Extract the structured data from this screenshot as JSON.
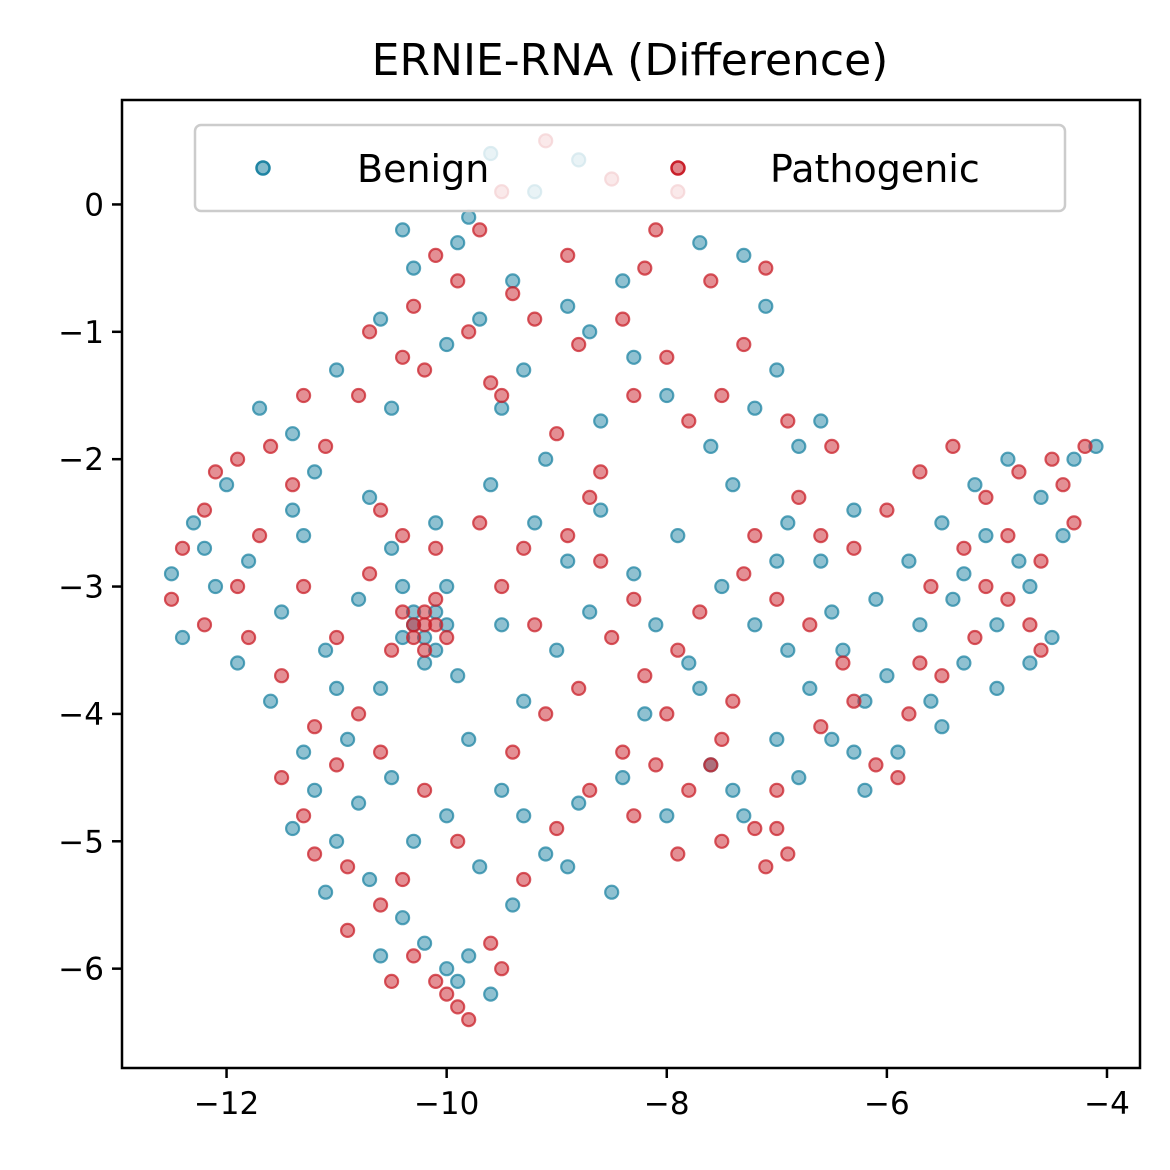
{
  "chart_data": {
    "type": "scatter",
    "title": "ERNIE-RNA (Difference)",
    "xlabel": "",
    "ylabel": "",
    "xlim": [
      -12.95,
      -3.7
    ],
    "ylim": [
      -6.78,
      0.82
    ],
    "xticks": [
      -12,
      -10,
      -8,
      -6,
      -4
    ],
    "yticks": [
      0,
      -1,
      -2,
      -3,
      -4,
      -5,
      -6
    ],
    "xtick_labels": [
      "−12",
      "−10",
      "−8",
      "−6",
      "−4"
    ],
    "ytick_labels": [
      "0",
      "−1",
      "−2",
      "−3",
      "−4",
      "−5",
      "−6"
    ],
    "grid": false,
    "legend": {
      "position": "upper-center",
      "columns": 2
    },
    "series": [
      {
        "name": "Benign",
        "color": "#1f84a3",
        "points": [
          [
            -9.6,
            0.4
          ],
          [
            -9.2,
            0.1
          ],
          [
            -8.8,
            0.35
          ],
          [
            -9.9,
            -0.3
          ],
          [
            -10.3,
            -0.5
          ],
          [
            -9.7,
            -0.9
          ],
          [
            -9.3,
            -1.3
          ],
          [
            -10.0,
            -1.1
          ],
          [
            -8.9,
            -0.8
          ],
          [
            -8.4,
            -0.6
          ],
          [
            -7.7,
            -0.3
          ],
          [
            -7.3,
            -0.4
          ],
          [
            -7.1,
            -0.8
          ],
          [
            -8.0,
            -1.5
          ],
          [
            -7.6,
            -1.9
          ],
          [
            -7.0,
            -1.3
          ],
          [
            -6.6,
            -1.7
          ],
          [
            -8.6,
            -1.7
          ],
          [
            -9.1,
            -2.0
          ],
          [
            -9.5,
            -1.6
          ],
          [
            -10.5,
            -1.6
          ],
          [
            -11.0,
            -1.3
          ],
          [
            -11.4,
            -1.8
          ],
          [
            -11.7,
            -1.6
          ],
          [
            -12.0,
            -2.2
          ],
          [
            -12.3,
            -2.5
          ],
          [
            -12.5,
            -2.9
          ],
          [
            -12.4,
            -3.4
          ],
          [
            -11.8,
            -2.8
          ],
          [
            -11.5,
            -3.2
          ],
          [
            -11.1,
            -3.5
          ],
          [
            -10.8,
            -3.1
          ],
          [
            -10.5,
            -2.7
          ],
          [
            -10.2,
            -3.6
          ],
          [
            -10.0,
            -3.0
          ],
          [
            -10.3,
            -3.3
          ],
          [
            -10.4,
            -3.4
          ],
          [
            -10.1,
            -3.2
          ],
          [
            -10.6,
            -3.8
          ],
          [
            -10.9,
            -4.2
          ],
          [
            -11.2,
            -4.6
          ],
          [
            -11.4,
            -4.9
          ],
          [
            -11.0,
            -5.0
          ],
          [
            -10.7,
            -5.3
          ],
          [
            -10.4,
            -5.6
          ],
          [
            -10.2,
            -5.8
          ],
          [
            -10.0,
            -6.0
          ],
          [
            -9.8,
            -5.9
          ],
          [
            -9.6,
            -6.2
          ],
          [
            -9.9,
            -6.1
          ],
          [
            -10.6,
            -5.9
          ],
          [
            -9.4,
            -5.5
          ],
          [
            -9.1,
            -5.1
          ],
          [
            -8.8,
            -4.7
          ],
          [
            -8.5,
            -5.4
          ],
          [
            -9.5,
            -4.6
          ],
          [
            -9.8,
            -4.2
          ],
          [
            -9.3,
            -3.9
          ],
          [
            -9.0,
            -3.5
          ],
          [
            -8.7,
            -3.2
          ],
          [
            -8.3,
            -2.9
          ],
          [
            -7.9,
            -2.6
          ],
          [
            -7.5,
            -3.0
          ],
          [
            -7.2,
            -3.3
          ],
          [
            -7.8,
            -3.6
          ],
          [
            -8.2,
            -4.0
          ],
          [
            -7.6,
            -4.4
          ],
          [
            -7.3,
            -4.8
          ],
          [
            -7.0,
            -4.2
          ],
          [
            -6.7,
            -3.8
          ],
          [
            -6.4,
            -3.5
          ],
          [
            -6.1,
            -3.1
          ],
          [
            -5.8,
            -2.8
          ],
          [
            -5.5,
            -2.5
          ],
          [
            -5.2,
            -2.2
          ],
          [
            -4.9,
            -2.0
          ],
          [
            -4.6,
            -2.3
          ],
          [
            -4.3,
            -2.0
          ],
          [
            -4.1,
            -1.9
          ],
          [
            -4.4,
            -2.6
          ],
          [
            -4.7,
            -3.0
          ],
          [
            -5.0,
            -3.3
          ],
          [
            -5.3,
            -3.6
          ],
          [
            -5.6,
            -3.9
          ],
          [
            -5.9,
            -4.3
          ],
          [
            -6.2,
            -4.6
          ],
          [
            -6.5,
            -4.2
          ],
          [
            -6.8,
            -4.5
          ],
          [
            -6.0,
            -3.7
          ],
          [
            -5.4,
            -3.1
          ],
          [
            -5.1,
            -2.6
          ],
          [
            -4.8,
            -2.8
          ],
          [
            -4.5,
            -3.4
          ],
          [
            -6.3,
            -2.4
          ],
          [
            -6.6,
            -2.8
          ],
          [
            -6.9,
            -2.5
          ],
          [
            -7.4,
            -2.2
          ],
          [
            -8.6,
            -2.4
          ],
          [
            -8.9,
            -2.8
          ],
          [
            -9.2,
            -2.5
          ],
          [
            -9.6,
            -2.2
          ],
          [
            -10.1,
            -2.5
          ],
          [
            -10.7,
            -2.3
          ],
          [
            -11.3,
            -2.6
          ],
          [
            -11.9,
            -3.6
          ],
          [
            -12.1,
            -3.0
          ],
          [
            -11.6,
            -3.9
          ],
          [
            -11.0,
            -3.8
          ],
          [
            -10.5,
            -4.5
          ],
          [
            -10.0,
            -4.8
          ],
          [
            -9.7,
            -5.2
          ],
          [
            -10.3,
            -5.0
          ],
          [
            -11.1,
            -5.4
          ],
          [
            -9.5,
            -3.3
          ],
          [
            -9.9,
            -3.7
          ],
          [
            -10.4,
            -3.0
          ],
          [
            -10.2,
            -3.4
          ],
          [
            -10.0,
            -3.3
          ],
          [
            -10.3,
            -3.2
          ],
          [
            -10.1,
            -3.5
          ],
          [
            -7.7,
            -3.8
          ],
          [
            -8.1,
            -3.3
          ],
          [
            -6.9,
            -3.5
          ],
          [
            -6.2,
            -3.9
          ],
          [
            -5.7,
            -3.3
          ],
          [
            -5.0,
            -3.8
          ],
          [
            -4.7,
            -3.6
          ],
          [
            -5.3,
            -2.9
          ],
          [
            -6.8,
            -1.9
          ],
          [
            -7.2,
            -1.6
          ],
          [
            -8.3,
            -1.2
          ],
          [
            -8.7,
            -1.0
          ],
          [
            -9.4,
            -0.6
          ],
          [
            -9.8,
            -0.1
          ],
          [
            -10.4,
            -0.2
          ],
          [
            -10.6,
            -0.9
          ],
          [
            -11.2,
            -2.1
          ],
          [
            -12.2,
            -2.7
          ],
          [
            -11.4,
            -2.4
          ],
          [
            -8.0,
            -4.8
          ],
          [
            -7.4,
            -4.6
          ],
          [
            -6.3,
            -4.3
          ],
          [
            -5.5,
            -4.1
          ],
          [
            -8.4,
            -4.5
          ],
          [
            -8.9,
            -5.2
          ],
          [
            -9.3,
            -4.8
          ],
          [
            -10.8,
            -4.7
          ],
          [
            -11.3,
            -4.3
          ],
          [
            -6.5,
            -3.2
          ],
          [
            -7.0,
            -2.8
          ]
        ]
      },
      {
        "name": "Pathogenic",
        "color": "#c9202a",
        "points": [
          [
            -9.1,
            0.5
          ],
          [
            -9.5,
            0.1
          ],
          [
            -8.5,
            0.2
          ],
          [
            -7.9,
            0.1
          ],
          [
            -9.7,
            -0.2
          ],
          [
            -10.1,
            -0.4
          ],
          [
            -9.4,
            -0.7
          ],
          [
            -9.8,
            -1.0
          ],
          [
            -10.2,
            -1.3
          ],
          [
            -9.5,
            -1.5
          ],
          [
            -8.8,
            -1.1
          ],
          [
            -8.2,
            -0.5
          ],
          [
            -7.6,
            -0.6
          ],
          [
            -7.3,
            -1.1
          ],
          [
            -7.8,
            -1.7
          ],
          [
            -8.3,
            -1.5
          ],
          [
            -8.6,
            -2.1
          ],
          [
            -9.0,
            -1.8
          ],
          [
            -9.6,
            -1.4
          ],
          [
            -10.4,
            -1.2
          ],
          [
            -10.8,
            -1.5
          ],
          [
            -11.3,
            -1.5
          ],
          [
            -11.6,
            -1.9
          ],
          [
            -11.9,
            -2.0
          ],
          [
            -12.2,
            -2.4
          ],
          [
            -12.4,
            -2.7
          ],
          [
            -12.5,
            -3.1
          ],
          [
            -12.2,
            -3.3
          ],
          [
            -11.7,
            -2.6
          ],
          [
            -11.3,
            -3.0
          ],
          [
            -11.0,
            -3.4
          ],
          [
            -10.7,
            -2.9
          ],
          [
            -10.4,
            -2.6
          ],
          [
            -10.2,
            -3.3
          ],
          [
            -10.3,
            -3.4
          ],
          [
            -10.2,
            -3.2
          ],
          [
            -10.1,
            -3.3
          ],
          [
            -10.3,
            -3.3
          ],
          [
            -10.2,
            -3.5
          ],
          [
            -10.4,
            -3.2
          ],
          [
            -10.1,
            -3.1
          ],
          [
            -10.0,
            -3.4
          ],
          [
            -10.5,
            -3.5
          ],
          [
            -10.8,
            -4.0
          ],
          [
            -11.0,
            -4.4
          ],
          [
            -11.3,
            -4.8
          ],
          [
            -10.9,
            -5.2
          ],
          [
            -10.6,
            -5.5
          ],
          [
            -10.3,
            -5.9
          ],
          [
            -10.1,
            -6.1
          ],
          [
            -9.9,
            -6.3
          ],
          [
            -9.8,
            -6.4
          ],
          [
            -9.6,
            -5.8
          ],
          [
            -9.3,
            -5.3
          ],
          [
            -9.0,
            -4.9
          ],
          [
            -8.7,
            -4.6
          ],
          [
            -8.4,
            -4.3
          ],
          [
            -8.1,
            -4.4
          ],
          [
            -7.8,
            -4.6
          ],
          [
            -7.5,
            -4.2
          ],
          [
            -7.2,
            -4.9
          ],
          [
            -6.9,
            -5.1
          ],
          [
            -7.1,
            -5.2
          ],
          [
            -7.4,
            -3.9
          ],
          [
            -7.9,
            -3.5
          ],
          [
            -8.3,
            -3.1
          ],
          [
            -8.6,
            -2.8
          ],
          [
            -8.9,
            -2.6
          ],
          [
            -8.5,
            -3.4
          ],
          [
            -8.2,
            -3.7
          ],
          [
            -7.7,
            -3.2
          ],
          [
            -7.3,
            -2.9
          ],
          [
            -7.0,
            -3.1
          ],
          [
            -6.6,
            -2.6
          ],
          [
            -6.3,
            -2.7
          ],
          [
            -6.0,
            -2.4
          ],
          [
            -5.7,
            -2.1
          ],
          [
            -5.4,
            -1.9
          ],
          [
            -5.1,
            -2.3
          ],
          [
            -4.8,
            -2.1
          ],
          [
            -4.5,
            -2.0
          ],
          [
            -4.2,
            -1.9
          ],
          [
            -4.3,
            -2.5
          ],
          [
            -4.6,
            -2.8
          ],
          [
            -4.9,
            -3.1
          ],
          [
            -5.2,
            -3.4
          ],
          [
            -5.5,
            -3.7
          ],
          [
            -5.8,
            -4.0
          ],
          [
            -6.1,
            -4.4
          ],
          [
            -5.9,
            -4.5
          ],
          [
            -6.4,
            -3.6
          ],
          [
            -6.7,
            -3.3
          ],
          [
            -5.6,
            -3.0
          ],
          [
            -5.3,
            -2.7
          ],
          [
            -4.7,
            -3.3
          ],
          [
            -4.6,
            -3.5
          ],
          [
            -6.5,
            -1.9
          ],
          [
            -6.9,
            -1.7
          ],
          [
            -7.5,
            -1.5
          ],
          [
            -8.0,
            -1.2
          ],
          [
            -8.4,
            -0.9
          ],
          [
            -8.9,
            -0.4
          ],
          [
            -9.2,
            -0.9
          ],
          [
            -9.9,
            -0.6
          ],
          [
            -10.3,
            -0.8
          ],
          [
            -10.7,
            -1.0
          ],
          [
            -11.1,
            -1.9
          ],
          [
            -11.4,
            -2.2
          ],
          [
            -11.8,
            -3.4
          ],
          [
            -11.5,
            -3.7
          ],
          [
            -11.2,
            -4.1
          ],
          [
            -10.6,
            -4.3
          ],
          [
            -10.2,
            -4.6
          ],
          [
            -9.9,
            -5.0
          ],
          [
            -10.4,
            -5.3
          ],
          [
            -10.9,
            -5.7
          ],
          [
            -11.2,
            -5.1
          ],
          [
            -9.4,
            -4.3
          ],
          [
            -9.1,
            -4.0
          ],
          [
            -8.8,
            -3.8
          ],
          [
            -8.0,
            -4.0
          ],
          [
            -7.6,
            -4.4
          ],
          [
            -7.0,
            -4.6
          ],
          [
            -6.6,
            -4.1
          ],
          [
            -6.3,
            -3.9
          ],
          [
            -5.7,
            -3.6
          ],
          [
            -5.1,
            -3.0
          ],
          [
            -4.9,
            -2.6
          ],
          [
            -4.4,
            -2.2
          ],
          [
            -6.8,
            -2.3
          ],
          [
            -7.2,
            -2.6
          ],
          [
            -8.7,
            -2.3
          ],
          [
            -9.3,
            -2.7
          ],
          [
            -9.7,
            -2.5
          ],
          [
            -10.1,
            -2.7
          ],
          [
            -10.6,
            -2.4
          ],
          [
            -9.5,
            -3.0
          ],
          [
            -9.2,
            -3.3
          ],
          [
            -7.5,
            -5.0
          ],
          [
            -7.0,
            -4.9
          ],
          [
            -8.3,
            -4.8
          ],
          [
            -7.9,
            -5.1
          ],
          [
            -9.5,
            -6.0
          ],
          [
            -10.0,
            -6.2
          ],
          [
            -10.5,
            -6.1
          ],
          [
            -11.5,
            -4.5
          ],
          [
            -12.1,
            -2.1
          ],
          [
            -11.9,
            -3.0
          ],
          [
            -7.1,
            -0.5
          ],
          [
            -8.1,
            -0.2
          ]
        ]
      }
    ]
  }
}
